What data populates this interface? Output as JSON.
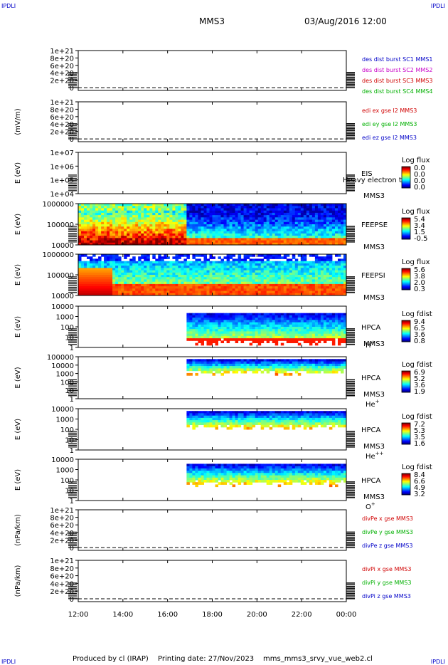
{
  "header": {
    "corner_left": "IPDLI",
    "corner_right": "IPDLI",
    "spacecraft": "MMS3",
    "datetime": "03/Aug/2016 12:00"
  },
  "footer": {
    "produced_by": "Produced by cl (IRAP)",
    "printing_date": "Printing date: 27/Nov/2023",
    "script": "mms_mms3_srvy_vue_web2.cl",
    "corner_left": "IPDLI",
    "corner_right": "IPDLI"
  },
  "colors": {
    "blue": "#0000c8",
    "magenta": "#c800c8",
    "red": "#d00000",
    "green": "#00b000"
  },
  "chart_data": {
    "type": "heatmap",
    "x_ticks": [
      "12:00",
      "14:00",
      "16:00",
      "18:00",
      "20:00",
      "22:00",
      "00:00"
    ],
    "panels": [
      {
        "id": "des-dist",
        "kind": "line",
        "ylabel": "",
        "y_ticks": [
          "1e+21",
          "8e+20",
          "6e+20",
          "4e+20",
          "2e+20",
          "0"
        ],
        "legend": [
          {
            "text": "des dist burst SC1 MMS1",
            "color": "#0000c8"
          },
          {
            "text": "des dist burst SC2 MMS2",
            "color": "#c800c8"
          },
          {
            "text": "des dist burst SC3 MMS3",
            "color": "#d00000"
          },
          {
            "text": "des dist burst SC4 MMS4",
            "color": "#00b000"
          }
        ]
      },
      {
        "id": "edi",
        "kind": "line",
        "ylabel": "(mV/m)",
        "y_ticks": [
          "1e+21",
          "8e+20",
          "6e+20",
          "4e+20",
          "2e+20",
          "0"
        ],
        "legend": [
          {
            "text": "edi ex gse l2 MMS3",
            "color": "#d00000"
          },
          {
            "text": "edi ey gse l2 MMS3",
            "color": "#00b000"
          },
          {
            "text": "edi ez gse l2 MMS3",
            "color": "#0000c8"
          }
        ]
      },
      {
        "id": "eis",
        "kind": "spectrogram",
        "ylabel": "E (eV)",
        "y_ticks": [
          "1e+07",
          "1e+06",
          "1e+05",
          "1e+04"
        ],
        "instrument": "EIS",
        "overlay_text": "Heavy electron to",
        "sc": "MMS3",
        "cbar_title": "Log flux",
        "cbar_ticks": [
          "0.0",
          "0.0",
          "0.0",
          "0.0"
        ],
        "coverage": "none"
      },
      {
        "id": "feepse",
        "kind": "spectrogram",
        "ylabel": "E (eV)",
        "y_ticks": [
          "1000000",
          "100000",
          "10000"
        ],
        "instrument": "FEEPSE",
        "sc": "MMS3",
        "cbar_title": "Log flux",
        "cbar_ticks": [
          "5.4",
          "3.4",
          "1.5",
          "-0.5"
        ],
        "coverage": "full"
      },
      {
        "id": "feepsi",
        "kind": "spectrogram",
        "ylabel": "E (eV)",
        "y_ticks": [
          "1000000",
          "100000",
          "10000"
        ],
        "instrument": "FEEPSI",
        "sc": "MMS3",
        "cbar_title": "Log flux",
        "cbar_ticks": [
          "5.6",
          "3.8",
          "2.0",
          "0.3"
        ],
        "coverage": "full"
      },
      {
        "id": "hpca-h",
        "kind": "spectrogram",
        "ylabel": "E (eV)",
        "y_ticks": [
          "10000",
          "1000",
          "100",
          "10",
          "1"
        ],
        "instrument": "HPCA",
        "sc": "MMS3",
        "species": "H",
        "species_sup": "+",
        "cbar_title": "Log fdist",
        "cbar_ticks": [
          "9.4",
          "6.5",
          "3.6",
          "0.8"
        ],
        "coverage": "from-17h"
      },
      {
        "id": "hpca-he",
        "kind": "spectrogram",
        "ylabel": "E (eV)",
        "y_ticks": [
          "100000",
          "10000",
          "1000",
          "100",
          "10",
          "1"
        ],
        "instrument": "HPCA",
        "sc": "MMS3",
        "species": "He",
        "species_sup": "+",
        "cbar_title": "Log fdist",
        "cbar_ticks": [
          "6.9",
          "5.2",
          "3.6",
          "1.9"
        ],
        "coverage": "from-17h"
      },
      {
        "id": "hpca-hepp",
        "kind": "spectrogram",
        "ylabel": "E (eV)",
        "y_ticks": [
          "10000",
          "1000",
          "100",
          "10",
          "1"
        ],
        "instrument": "HPCA",
        "sc": "MMS3",
        "species": "He",
        "species_sup": "++",
        "cbar_title": "Log fdist",
        "cbar_ticks": [
          "7.2",
          "5.3",
          "3.5",
          "1.6"
        ],
        "coverage": "from-17h"
      },
      {
        "id": "hpca-o",
        "kind": "spectrogram",
        "ylabel": "E (eV)",
        "y_ticks": [
          "10000",
          "1000",
          "100",
          "10",
          "1"
        ],
        "instrument": "HPCA",
        "sc": "MMS3",
        "species": "O",
        "species_sup": "+",
        "cbar_title": "Log fdist",
        "cbar_ticks": [
          "8.4",
          "6.6",
          "4.9",
          "3.2"
        ],
        "coverage": "from-17h"
      },
      {
        "id": "divpe",
        "kind": "line",
        "ylabel": "(nPa/km)",
        "y_ticks": [
          "1e+21",
          "8e+20",
          "6e+20",
          "4e+20",
          "2e+20",
          "0"
        ],
        "legend": [
          {
            "text": "divPe x gse MMS3",
            "color": "#d00000"
          },
          {
            "text": "divPe y gse MMS3",
            "color": "#00b000"
          },
          {
            "text": "divPe z gse MMS3",
            "color": "#0000c8"
          }
        ]
      },
      {
        "id": "divpi",
        "kind": "line",
        "ylabel": "(nPa/km)",
        "y_ticks": [
          "1e+21",
          "8e+20",
          "6e+20",
          "4e+20",
          "2e+20",
          "0"
        ],
        "legend": [
          {
            "text": "divPi x gse MMS3",
            "color": "#d00000"
          },
          {
            "text": "divPi y gse MMS3",
            "color": "#00b000"
          },
          {
            "text": "divPi z gse MMS3",
            "color": "#0000c8"
          }
        ]
      }
    ]
  }
}
